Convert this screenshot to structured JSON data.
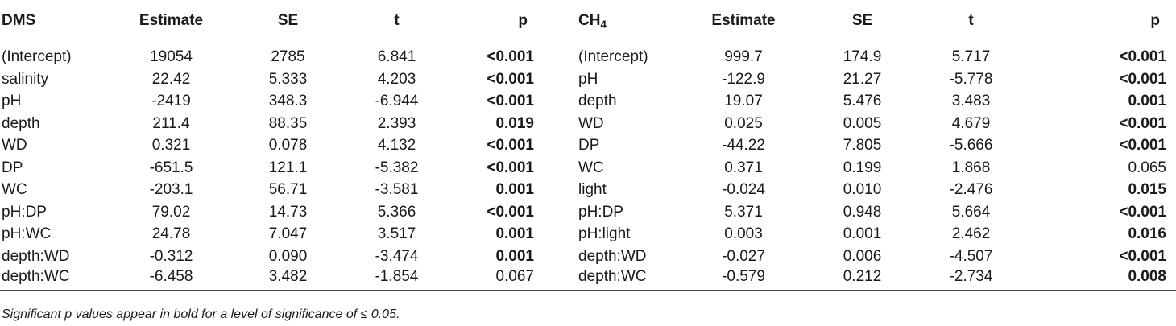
{
  "headers": {
    "dms": "DMS",
    "estimate": "Estimate",
    "se": "SE",
    "t": "t",
    "p": "p",
    "ch4_main": "CH",
    "ch4_sub": "4"
  },
  "rows": [
    {
      "dms_term": "(Intercept)",
      "dms_est": "19054",
      "dms_se": "2785",
      "dms_t": "6.841",
      "dms_p": "<0.001",
      "dms_sig": true,
      "ch4_term": "(Intercept)",
      "ch4_est": "999.7",
      "ch4_se": "174.9",
      "ch4_t": "5.717",
      "ch4_p": "<0.001",
      "ch4_sig": true
    },
    {
      "dms_term": "salinity",
      "dms_est": "22.42",
      "dms_se": "5.333",
      "dms_t": "4.203",
      "dms_p": "<0.001",
      "dms_sig": true,
      "ch4_term": "pH",
      "ch4_est": "-122.9",
      "ch4_se": "21.27",
      "ch4_t": "-5.778",
      "ch4_p": "<0.001",
      "ch4_sig": true
    },
    {
      "dms_term": "pH",
      "dms_est": "-2419",
      "dms_se": "348.3",
      "dms_t": "-6.944",
      "dms_p": "<0.001",
      "dms_sig": true,
      "ch4_term": "depth",
      "ch4_est": "19.07",
      "ch4_se": "5.476",
      "ch4_t": "3.483",
      "ch4_p": "0.001",
      "ch4_sig": true
    },
    {
      "dms_term": "depth",
      "dms_est": "211.4",
      "dms_se": "88.35",
      "dms_t": "2.393",
      "dms_p": "0.019",
      "dms_sig": true,
      "ch4_term": "WD",
      "ch4_est": "0.025",
      "ch4_se": "0.005",
      "ch4_t": "4.679",
      "ch4_p": "<0.001",
      "ch4_sig": true
    },
    {
      "dms_term": "WD",
      "dms_est": "0.321",
      "dms_se": "0.078",
      "dms_t": "4.132",
      "dms_p": "<0.001",
      "dms_sig": true,
      "ch4_term": "DP",
      "ch4_est": "-44.22",
      "ch4_se": "7.805",
      "ch4_t": "-5.666",
      "ch4_p": "<0.001",
      "ch4_sig": true
    },
    {
      "dms_term": "DP",
      "dms_est": "-651.5",
      "dms_se": "121.1",
      "dms_t": "-5.382",
      "dms_p": "<0.001",
      "dms_sig": true,
      "ch4_term": "WC",
      "ch4_est": "0.371",
      "ch4_se": "0.199",
      "ch4_t": "1.868",
      "ch4_p": "0.065",
      "ch4_sig": false
    },
    {
      "dms_term": "WC",
      "dms_est": "-203.1",
      "dms_se": "56.71",
      "dms_t": "-3.581",
      "dms_p": "0.001",
      "dms_sig": true,
      "ch4_term": "light",
      "ch4_est": "-0.024",
      "ch4_se": "0.010",
      "ch4_t": "-2.476",
      "ch4_p": "0.015",
      "ch4_sig": true
    },
    {
      "dms_term": "pH:DP",
      "dms_est": "79.02",
      "dms_se": "14.73",
      "dms_t": "5.366",
      "dms_p": "<0.001",
      "dms_sig": true,
      "ch4_term": "pH:DP",
      "ch4_est": "5.371",
      "ch4_se": "0.948",
      "ch4_t": "5.664",
      "ch4_p": "<0.001",
      "ch4_sig": true
    },
    {
      "dms_term": "pH:WC",
      "dms_est": "24.78",
      "dms_se": "7.047",
      "dms_t": "3.517",
      "dms_p": "0.001",
      "dms_sig": true,
      "ch4_term": "pH:light",
      "ch4_est": "0.003",
      "ch4_se": "0.001",
      "ch4_t": "2.462",
      "ch4_p": "0.016",
      "ch4_sig": true
    },
    {
      "dms_term": "depth:WD",
      "dms_est": "-0.312",
      "dms_se": "0.090",
      "dms_t": "-3.474",
      "dms_p": "0.001",
      "dms_sig": true,
      "ch4_term": "depth:WD",
      "ch4_est": "-0.027",
      "ch4_se": "0.006",
      "ch4_t": "-4.507",
      "ch4_p": "<0.001",
      "ch4_sig": true
    },
    {
      "dms_term": "depth:WC",
      "dms_est": "-6.458",
      "dms_se": "3.482",
      "dms_t": "-1.854",
      "dms_p": "0.067",
      "dms_sig": false,
      "ch4_term": "depth:WC",
      "ch4_est": "-0.579",
      "ch4_se": "0.212",
      "ch4_t": "-2.734",
      "ch4_p": "0.008",
      "ch4_sig": true
    }
  ],
  "footnote": "Significant p values appear in bold for a level of significance of ≤ 0.05."
}
